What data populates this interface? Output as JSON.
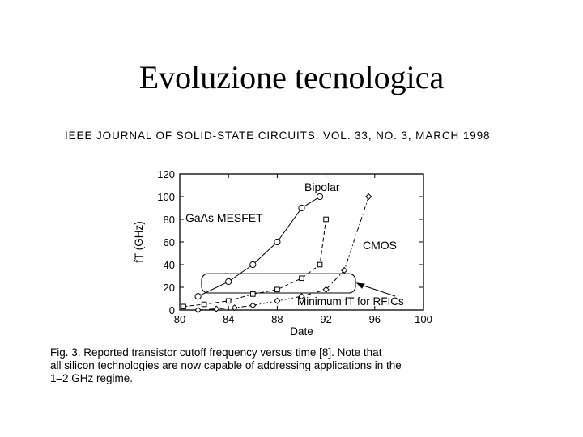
{
  "slide": {
    "title": "Evoluzione tecnologica",
    "journal_header": "IEEE JOURNAL OF SOLID-STATE CIRCUITS, VOL. 33, NO. 3, MARCH 1998",
    "caption_lines": [
      "Fig. 3.   Reported transistor cutoff frequency versus time [8]. Note that",
      "all silicon technologies are now capable of addressing applications in the",
      "1–2 GHz regime."
    ]
  },
  "chart_data": {
    "type": "line",
    "xlabel": "Date",
    "ylabel": "fT (GHz)",
    "xlim": [
      80,
      100
    ],
    "ylim": [
      0,
      120
    ],
    "xticks": [
      80,
      84,
      88,
      92,
      96,
      100
    ],
    "yticks": [
      0,
      20,
      40,
      60,
      80,
      100,
      120
    ],
    "grid": false,
    "series": [
      {
        "name": "GaAs MESFET",
        "marker": "circle",
        "dash": "solid",
        "x": [
          81.5,
          84,
          86,
          88,
          90,
          91.5
        ],
        "y": [
          12,
          25,
          40,
          60,
          90,
          100
        ]
      },
      {
        "name": "Bipolar",
        "marker": "square",
        "dash": "dashed",
        "x": [
          80.3,
          82,
          84,
          86,
          88,
          90,
          91.5,
          92
        ],
        "y": [
          3,
          5,
          8,
          14,
          18,
          28,
          40,
          80
        ]
      },
      {
        "name": "CMOS",
        "marker": "diamond",
        "dash": "dashdot",
        "x": [
          81.5,
          83,
          84.5,
          86,
          88,
          90,
          92,
          93.5,
          95.5
        ],
        "y": [
          0,
          1,
          2,
          4,
          8,
          12,
          18,
          35,
          100
        ]
      }
    ],
    "annotations": [
      {
        "text": "Bipolar",
        "near_series": "Bipolar"
      },
      {
        "text": "GaAs MESFET",
        "near_series": "GaAs MESFET"
      },
      {
        "text": "CMOS",
        "near_series": "CMOS"
      },
      {
        "text": "Minimum fT  for RFICs",
        "points_to": "highlight box",
        "box_y_range": [
          15,
          32
        ]
      }
    ]
  }
}
